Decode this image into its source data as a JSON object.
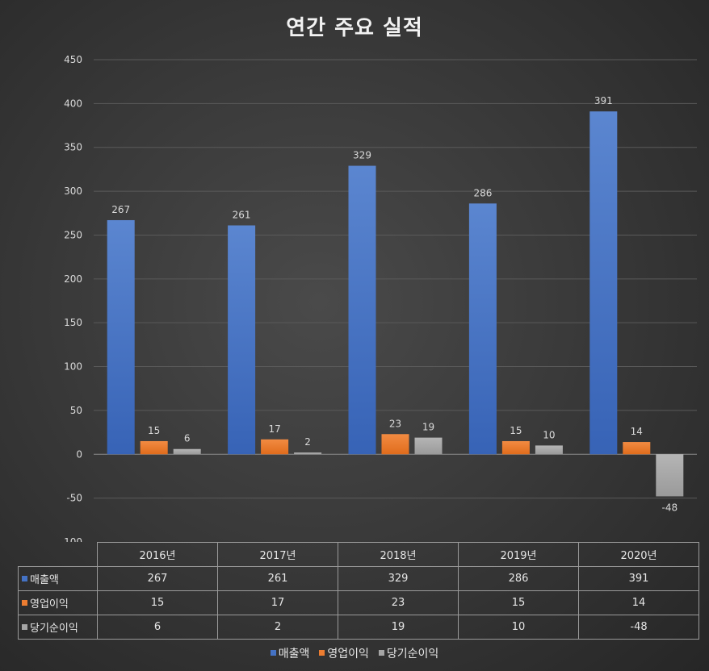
{
  "chart_data": {
    "type": "bar",
    "title": "연간 주요 실적",
    "categories": [
      "2016년",
      "2017년",
      "2018년",
      "2019년",
      "2020년"
    ],
    "series": [
      {
        "name": "매출액",
        "values": [
          267,
          261,
          329,
          286,
          391
        ],
        "color": "#4472c4"
      },
      {
        "name": "영업이익",
        "values": [
          15,
          17,
          23,
          15,
          14
        ],
        "color": "#ed7d31"
      },
      {
        "name": "당기순이익",
        "values": [
          6,
          2,
          19,
          10,
          -48
        ],
        "color": "#a5a5a5"
      }
    ],
    "ylim": [
      -100,
      450
    ],
    "yticks": [
      450,
      400,
      350,
      300,
      250,
      200,
      150,
      100,
      50,
      0,
      -50,
      -100
    ],
    "grid": true,
    "legend": "bottom",
    "data_table": true
  }
}
